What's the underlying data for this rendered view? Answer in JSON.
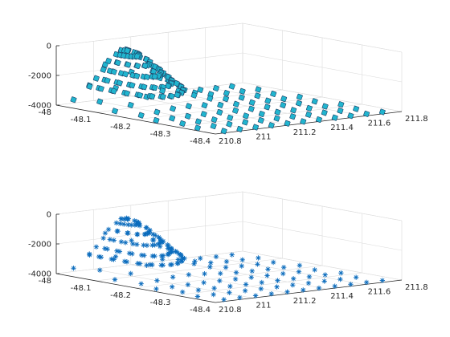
{
  "chart_data": [
    {
      "type": "scatter3d",
      "marker": "square",
      "marker_face_color": "#21b5cf",
      "marker_edge_color": "#1b3f63",
      "xlim": [
        210.8,
        211.8
      ],
      "ylim": [
        -48.4,
        -48
      ],
      "zlim": [
        -4000,
        0
      ],
      "x_ticks": [
        "210.8",
        "211",
        "211.2",
        "211.4",
        "211.6",
        "211.8"
      ],
      "y_ticks": [
        "-48",
        "-48.1",
        "-48.2",
        "-48.3",
        "-48.4"
      ],
      "z_ticks": [
        "0",
        "-2000",
        "-4000"
      ],
      "grid": true,
      "surface": {
        "base_z": -4000,
        "peak_z": -650,
        "peak_x": 211.12,
        "peak_y": -48.02,
        "spread_x": 0.13,
        "spread_y": 0.07
      }
    },
    {
      "type": "scatter3d",
      "marker": "asterisk",
      "marker_color": "#0b6cbd",
      "xlim": [
        210.8,
        211.8
      ],
      "ylim": [
        -48.4,
        -48
      ],
      "zlim": [
        -4000,
        0
      ],
      "x_ticks": [
        "210.8",
        "211",
        "211.2",
        "211.4",
        "211.6",
        "211.8"
      ],
      "y_ticks": [
        "-48",
        "-48.1",
        "-48.2",
        "-48.3",
        "-48.4"
      ],
      "z_ticks": [
        "0",
        "-2000",
        "-4000"
      ],
      "grid": true,
      "surface": {
        "base_z": -4000,
        "peak_z": -650,
        "peak_x": 211.12,
        "peak_y": -48.02,
        "spread_x": 0.13,
        "spread_y": 0.07
      }
    }
  ]
}
